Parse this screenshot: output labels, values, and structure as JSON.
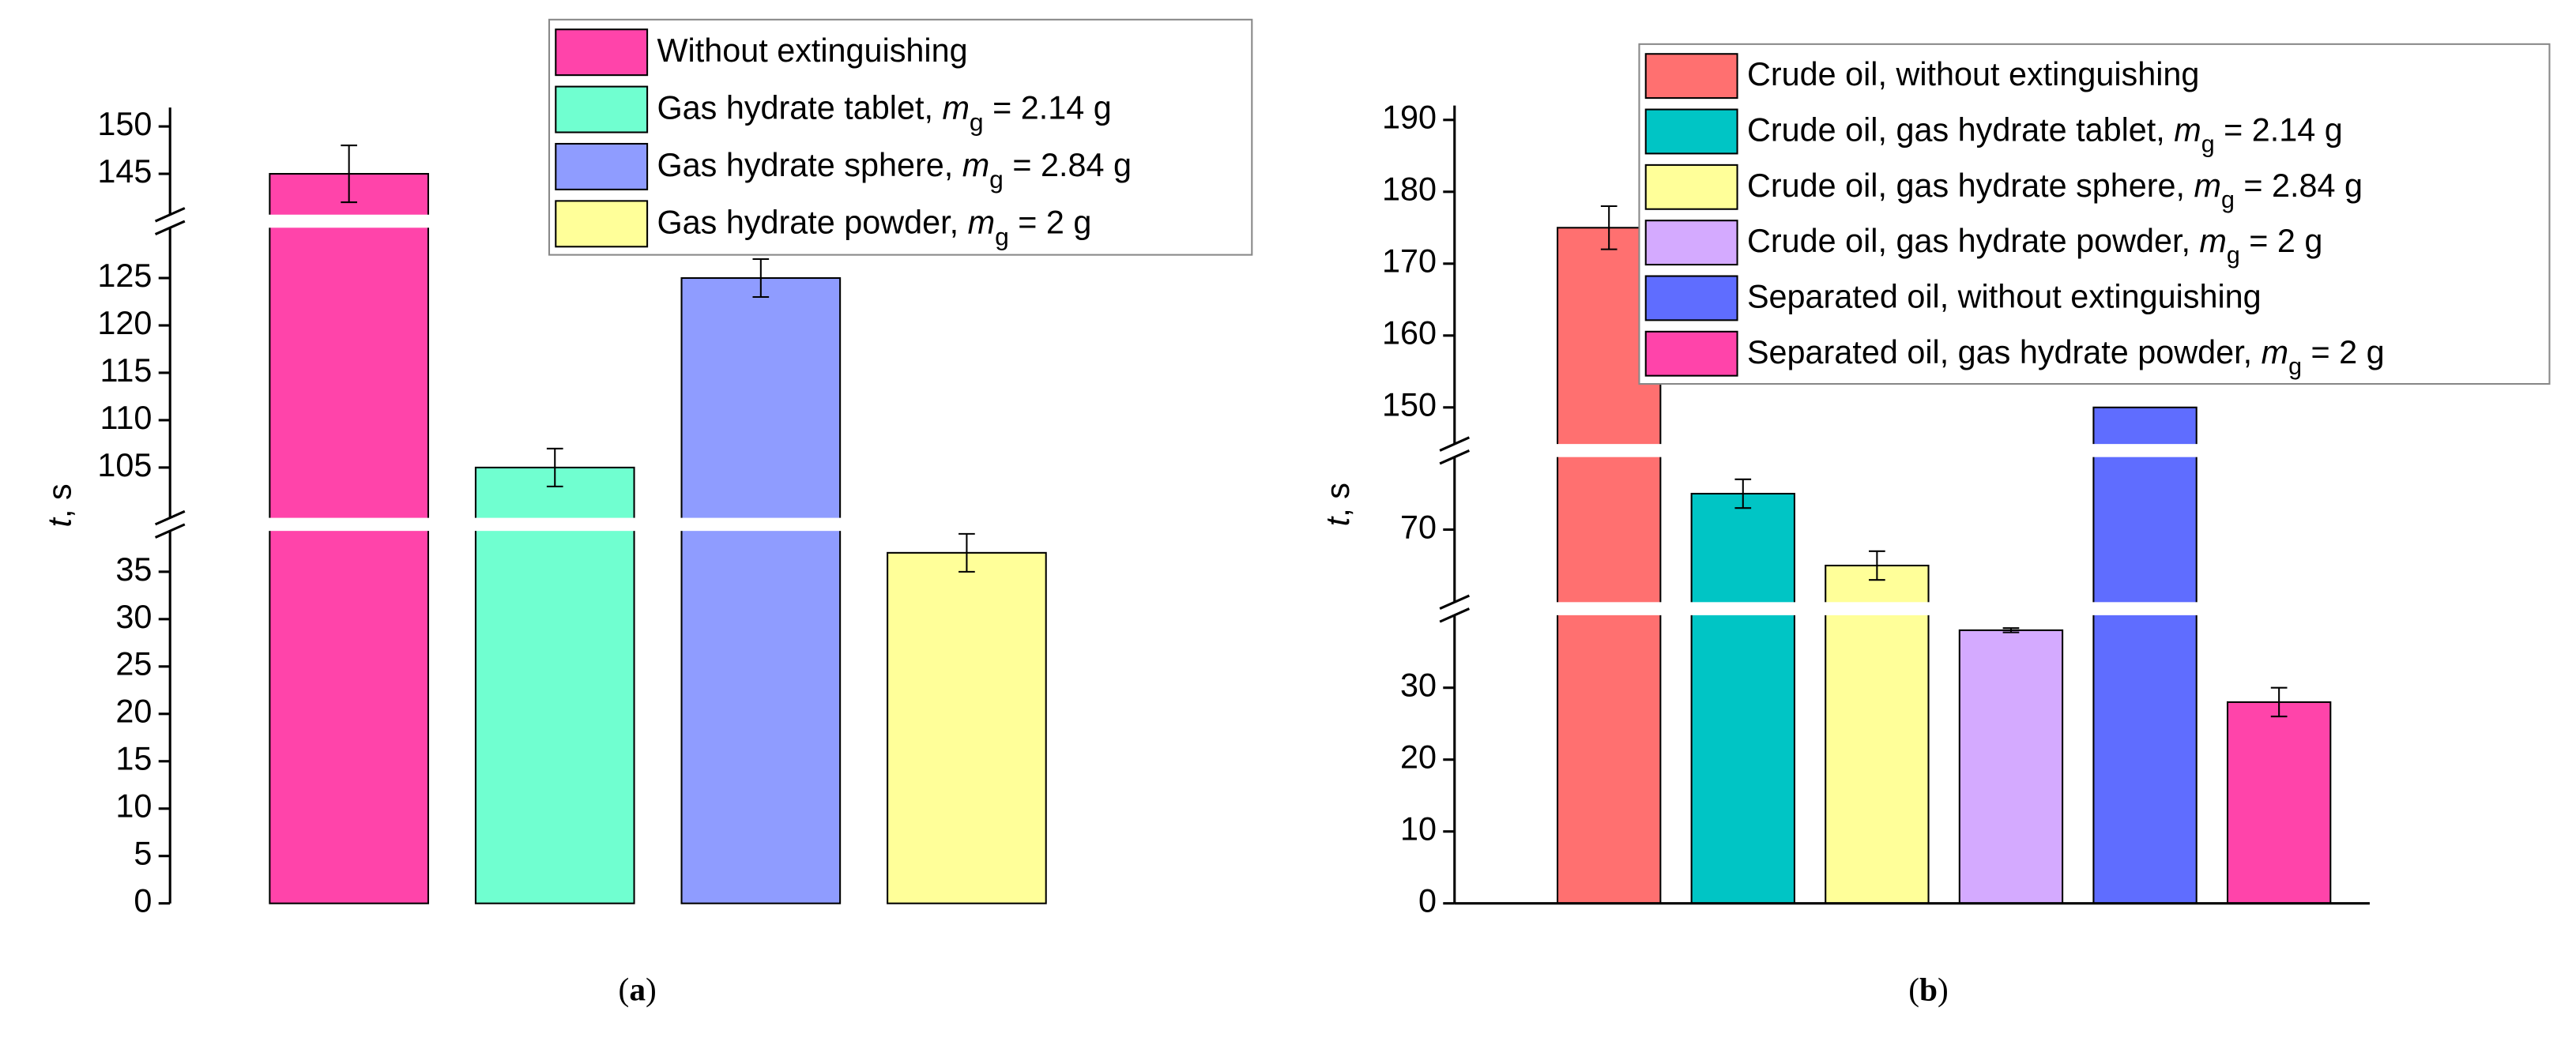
{
  "chart_data": [
    {
      "type": "bar",
      "y_label": [
        "t",
        ", s"
      ],
      "caption": [
        "(",
        "a",
        ")"
      ],
      "segments": [
        {
          "ylim": [
            0,
            40
          ],
          "yticks": [
            0,
            5,
            10,
            15,
            20,
            25,
            30,
            35
          ]
        },
        {
          "ylim": [
            99,
            131
          ],
          "yticks": [
            105,
            110,
            115,
            120,
            125
          ]
        },
        {
          "ylim": [
            140,
            152
          ],
          "yticks": [
            145,
            150
          ]
        }
      ],
      "series": [
        {
          "name": [
            "Without extinguishing"
          ],
          "color": "#ff44aa",
          "values": [
            145
          ],
          "errors": [
            3
          ]
        },
        {
          "name": [
            "Gas hydrate tablet, ",
            "m",
            "g",
            " = 2.14 g"
          ],
          "color": "#70ffd0",
          "values": [
            105
          ],
          "errors": [
            2
          ]
        },
        {
          "name": [
            "Gas hydrate sphere, ",
            "m",
            "g",
            " = 2.84 g"
          ],
          "color": "#8f9cff",
          "values": [
            125
          ],
          "errors": [
            2
          ]
        },
        {
          "name": [
            "Gas hydrate powder, ",
            "m",
            "g",
            " = 2 g"
          ],
          "color": "#ffff99",
          "values": [
            37
          ],
          "errors": [
            2
          ]
        }
      ],
      "baseline": false
    },
    {
      "type": "bar",
      "y_label": [
        "t",
        ", s"
      ],
      "caption": [
        "(",
        "b",
        ")"
      ],
      "segments": [
        {
          "ylim": [
            0,
            41
          ],
          "yticks": [
            0,
            10,
            20,
            30
          ]
        },
        {
          "ylim": [
            59,
            81
          ],
          "yticks": [
            70
          ]
        },
        {
          "ylim": [
            144,
            192
          ],
          "yticks": [
            150,
            160,
            170,
            180,
            190
          ]
        }
      ],
      "series": [
        {
          "name": [
            "Crude oil, without extinguishing"
          ],
          "color": "#ff7070",
          "values": [
            175
          ],
          "errors": [
            3
          ]
        },
        {
          "name": [
            "Crude oil, gas hydrate tablet, ",
            "m",
            "g",
            " = 2.14 g"
          ],
          "color": "#00c5c5",
          "values": [
            75
          ],
          "errors": [
            2
          ]
        },
        {
          "name": [
            "Crude oil, gas hydrate sphere, ",
            "m",
            "g",
            " = 2.84 g"
          ],
          "color": "#ffff99",
          "values": [
            65
          ],
          "errors": [
            2
          ]
        },
        {
          "name": [
            "Crude oil, gas hydrate powder, ",
            "m",
            "g",
            " = 2 g"
          ],
          "color": "#d4aaff",
          "values": [
            38
          ],
          "errors": [
            0.3
          ]
        },
        {
          "name": [
            "Separated oil, without extinguishing"
          ],
          "color": "#5f6dff",
          "values": [
            150
          ],
          "errors": [
            0
          ]
        },
        {
          "name": [
            "Separated oil, gas hydrate powder, ",
            "m",
            "g",
            " = 2 g"
          ],
          "color": "#ff44aa",
          "values": [
            28
          ],
          "errors": [
            2
          ]
        }
      ],
      "baseline": true
    }
  ]
}
